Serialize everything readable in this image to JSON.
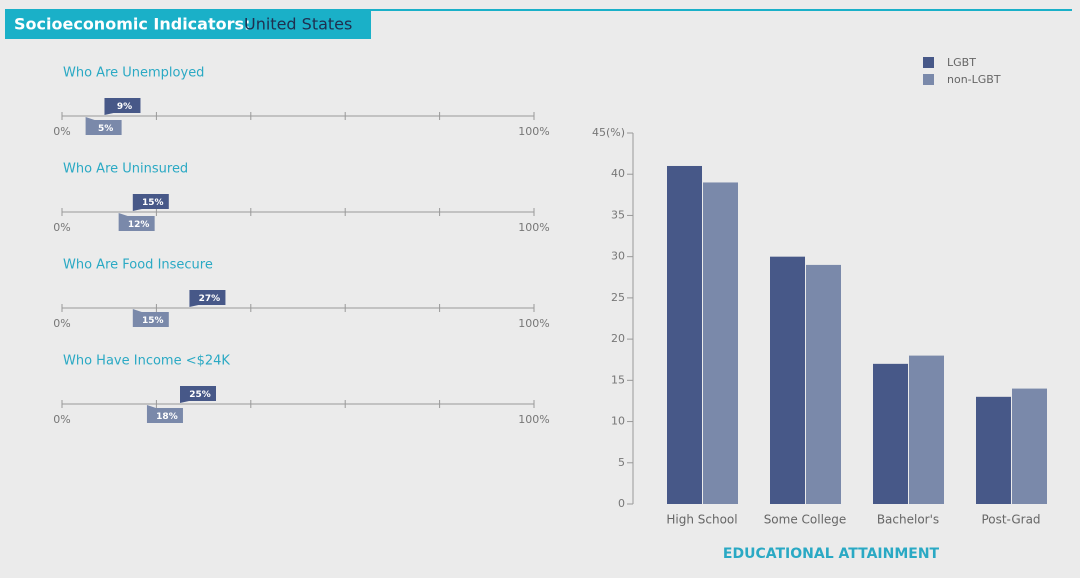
{
  "header": {
    "title": "Socioeconomic Indicators:",
    "subtitle": "United States"
  },
  "chart_data": [
    {
      "type": "marker",
      "title": "Who Are Unemployed",
      "xlim": [
        0,
        100
      ],
      "xticks": [
        {
          "value": 0,
          "label": "0%"
        },
        {
          "value": 20,
          "label": null
        },
        {
          "value": 40,
          "label": null
        },
        {
          "value": 60,
          "label": null
        },
        {
          "value": 80,
          "label": null
        },
        {
          "value": 100,
          "label": "100%"
        }
      ],
      "series": [
        {
          "color": "#475888",
          "values": [
            9
          ],
          "value_labels": [
            "9%"
          ]
        },
        {
          "color": "#7a89aa",
          "values": [
            5
          ],
          "value_labels": [
            "5%"
          ]
        }
      ]
    },
    {
      "type": "marker",
      "title": "Who Are Uninsured",
      "xlim": [
        0,
        100
      ],
      "xticks": [
        {
          "value": 0,
          "label": "0%"
        },
        {
          "value": 20,
          "label": null
        },
        {
          "value": 40,
          "label": null
        },
        {
          "value": 60,
          "label": null
        },
        {
          "value": 80,
          "label": null
        },
        {
          "value": 100,
          "label": "100%"
        }
      ],
      "series": [
        {
          "color": "#475888",
          "values": [
            15
          ],
          "value_labels": [
            "15%"
          ]
        },
        {
          "color": "#7a89aa",
          "values": [
            12
          ],
          "value_labels": [
            "12%"
          ]
        }
      ]
    },
    {
      "type": "marker",
      "title": "Who Are Food Insecure",
      "xlim": [
        0,
        100
      ],
      "xticks": [
        {
          "value": 0,
          "label": "0%"
        },
        {
          "value": 20,
          "label": null
        },
        {
          "value": 40,
          "label": null
        },
        {
          "value": 60,
          "label": null
        },
        {
          "value": 80,
          "label": null
        },
        {
          "value": 100,
          "label": "100%"
        }
      ],
      "series": [
        {
          "color": "#475888",
          "values": [
            27
          ],
          "value_labels": [
            "27%"
          ]
        },
        {
          "color": "#7a89aa",
          "values": [
            15
          ],
          "value_labels": [
            "15%"
          ]
        }
      ]
    },
    {
      "type": "marker",
      "title": "Who Have Income <$24K",
      "xlim": [
        0,
        100
      ],
      "xticks": [
        {
          "value": 0,
          "label": "0%"
        },
        {
          "value": 20,
          "label": null
        },
        {
          "value": 40,
          "label": null
        },
        {
          "value": 60,
          "label": null
        },
        {
          "value": 80,
          "label": null
        },
        {
          "value": 100,
          "label": "100%"
        }
      ],
      "series": [
        {
          "color": "#475888",
          "values": [
            25
          ],
          "value_labels": [
            "25%"
          ]
        },
        {
          "color": "#7a89aa",
          "values": [
            18
          ],
          "value_labels": [
            "18%"
          ]
        }
      ]
    },
    {
      "type": "bar",
      "x_label": "EDUCATIONAL ATTAINMENT",
      "categories": [
        "High School",
        "Some College",
        "Bachelor's",
        "Post-Grad"
      ],
      "series": [
        {
          "name": "LGBT",
          "color": "#475888",
          "values": [
            41,
            30,
            17,
            13
          ]
        },
        {
          "name": "non-LGBT",
          "color": "#7a89aa",
          "values": [
            39,
            29,
            18,
            14
          ]
        }
      ],
      "ylim": [
        0,
        45
      ],
      "yticks": [
        0,
        5,
        10,
        15,
        20,
        25,
        30,
        35,
        40,
        {
          "value": 45,
          "label": "45(%)"
        }
      ],
      "legend": "top-right"
    }
  ]
}
